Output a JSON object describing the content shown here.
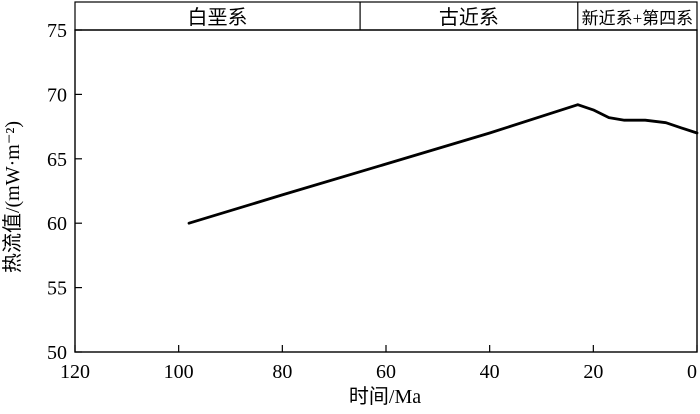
{
  "chart_data": {
    "type": "line",
    "xlabel": "时间/Ma",
    "ylabel": "热流值/(mW·m⁻²)",
    "xlim": [
      120,
      0
    ],
    "ylim": [
      50,
      75
    ],
    "x_reversed": true,
    "x_ticks": [
      120,
      100,
      80,
      60,
      40,
      20,
      0
    ],
    "y_ticks": [
      50,
      55,
      60,
      65,
      70,
      75
    ],
    "grid": false,
    "periods": [
      {
        "label": "白垩系",
        "from": 120,
        "to": 65
      },
      {
        "label": "古近系",
        "from": 65,
        "to": 23
      },
      {
        "label": "新近系+第四系",
        "from": 23,
        "to": 0
      }
    ],
    "series": [
      {
        "color": "#000000",
        "points": [
          {
            "x": 98,
            "y": 60.0
          },
          {
            "x": 80,
            "y": 62.2
          },
          {
            "x": 60,
            "y": 64.6
          },
          {
            "x": 40,
            "y": 67.0
          },
          {
            "x": 23,
            "y": 69.2
          },
          {
            "x": 20,
            "y": 68.8
          },
          {
            "x": 17,
            "y": 68.2
          },
          {
            "x": 14,
            "y": 68.0
          },
          {
            "x": 10,
            "y": 68.0
          },
          {
            "x": 6,
            "y": 67.8
          },
          {
            "x": 3,
            "y": 67.4
          },
          {
            "x": 0,
            "y": 67.0
          }
        ]
      }
    ]
  }
}
